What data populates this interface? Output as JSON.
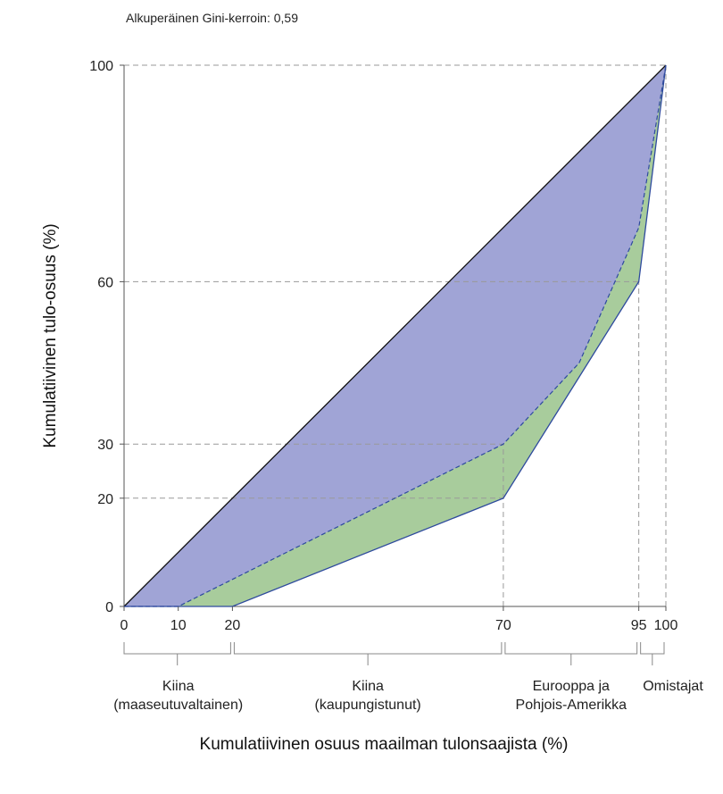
{
  "note": "Alkuperäinen Gini-kerroin: 0,59",
  "chart_data": {
    "type": "area",
    "title": "",
    "xlabel": "Kumulatiivinen osuus maailman tulonsaajista (%)",
    "ylabel": "Kumulatiivinen tulo-osuus (%)",
    "xlim": [
      0,
      100
    ],
    "ylim": [
      0,
      100
    ],
    "x_ticks": [
      0,
      10,
      20,
      70,
      95,
      100
    ],
    "y_ticks": [
      0,
      20,
      30,
      60,
      100
    ],
    "colors": {
      "purple_area": "#a0a4d6",
      "green_area": "#a8cc9c",
      "original_line": "#2e4a9e",
      "equality_line": "#111111",
      "grid": "#999999"
    },
    "series": [
      {
        "key": "equality",
        "x": [
          0,
          100
        ],
        "y": [
          0,
          100
        ]
      },
      {
        "key": "solid_lorenz",
        "x": [
          0,
          20,
          70,
          95,
          100
        ],
        "y": [
          0,
          0,
          20,
          60,
          100
        ]
      },
      {
        "key": "dashed_lorenz",
        "x": [
          0,
          10,
          70,
          84,
          95,
          100
        ],
        "y": [
          0,
          0,
          30,
          45,
          70,
          100
        ]
      }
    ],
    "groups": [
      {
        "from": 0,
        "to": 20,
        "lines": [
          "Kiina",
          "(maaseutuvaltainen)"
        ]
      },
      {
        "from": 20,
        "to": 70,
        "lines": [
          "Kiina",
          "(kaupungistunut)"
        ]
      },
      {
        "from": 70,
        "to": 95,
        "lines": [
          "Eurooppa ja",
          "Pohjois-Amerikka"
        ]
      },
      {
        "from": 95,
        "to": 100,
        "lines": [
          "Omistajat"
        ]
      }
    ]
  }
}
